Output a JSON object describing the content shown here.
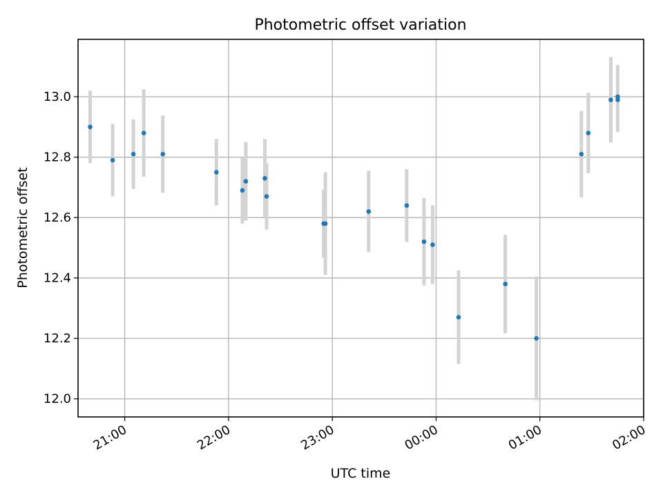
{
  "chart_data": {
    "type": "scatter",
    "title": "Photometric offset variation",
    "xlabel": "UTC time",
    "ylabel": "Photometric offset",
    "x_unit": "UTC time (HH:MM)",
    "xlim": [
      "20:33",
      "02:00"
    ],
    "ylim": [
      11.94,
      13.19
    ],
    "grid": true,
    "x_ticks": [
      "21:00",
      "22:00",
      "23:00",
      "00:00",
      "01:00",
      "02:00"
    ],
    "x_tick_times": [
      "21:00",
      "22:00",
      "23:00",
      "00:00",
      "01:00",
      "02:00"
    ],
    "y_ticks": [
      "12.0",
      "12.2",
      "12.4",
      "12.6",
      "12.8",
      "13.0"
    ],
    "y_tick_values": [
      12.0,
      12.2,
      12.4,
      12.6,
      12.8,
      13.0
    ],
    "marker_color": "#1f77b4",
    "errorbar_color": "#d3d3d3",
    "points": [
      {
        "time": "20:40",
        "y": 12.9,
        "err": 0.12
      },
      {
        "time": "20:53",
        "y": 12.79,
        "err": 0.12
      },
      {
        "time": "21:05",
        "y": 12.81,
        "err": 0.115
      },
      {
        "time": "21:11",
        "y": 12.88,
        "err": 0.145
      },
      {
        "time": "21:22",
        "y": 12.81,
        "err": 0.128
      },
      {
        "time": "21:53",
        "y": 12.75,
        "err": 0.11
      },
      {
        "time": "22:08",
        "y": 12.69,
        "err": 0.11
      },
      {
        "time": "22:10",
        "y": 12.72,
        "err": 0.13
      },
      {
        "time": "22:21",
        "y": 12.73,
        "err": 0.13
      },
      {
        "time": "22:22",
        "y": 12.67,
        "err": 0.11
      },
      {
        "time": "22:55",
        "y": 12.58,
        "err": 0.113
      },
      {
        "time": "22:56",
        "y": 12.58,
        "err": 0.17
      },
      {
        "time": "23:21",
        "y": 12.62,
        "err": 0.135
      },
      {
        "time": "23:43",
        "y": 12.64,
        "err": 0.12
      },
      {
        "time": "23:53",
        "y": 12.52,
        "err": 0.145
      },
      {
        "time": "23:58",
        "y": 12.51,
        "err": 0.13
      },
      {
        "time": "00:13",
        "y": 12.27,
        "err": 0.155
      },
      {
        "time": "00:40",
        "y": 12.38,
        "err": 0.163
      },
      {
        "time": "00:58",
        "y": 12.2,
        "err": 0.205
      },
      {
        "time": "01:24",
        "y": 12.81,
        "err": 0.143
      },
      {
        "time": "01:28",
        "y": 12.88,
        "err": 0.133
      },
      {
        "time": "01:41",
        "y": 12.99,
        "err": 0.142
      },
      {
        "time": "01:45",
        "y": 12.99,
        "err": 0.107
      },
      {
        "time": "01:45",
        "y": 13.0,
        "err": 0.105
      }
    ]
  }
}
